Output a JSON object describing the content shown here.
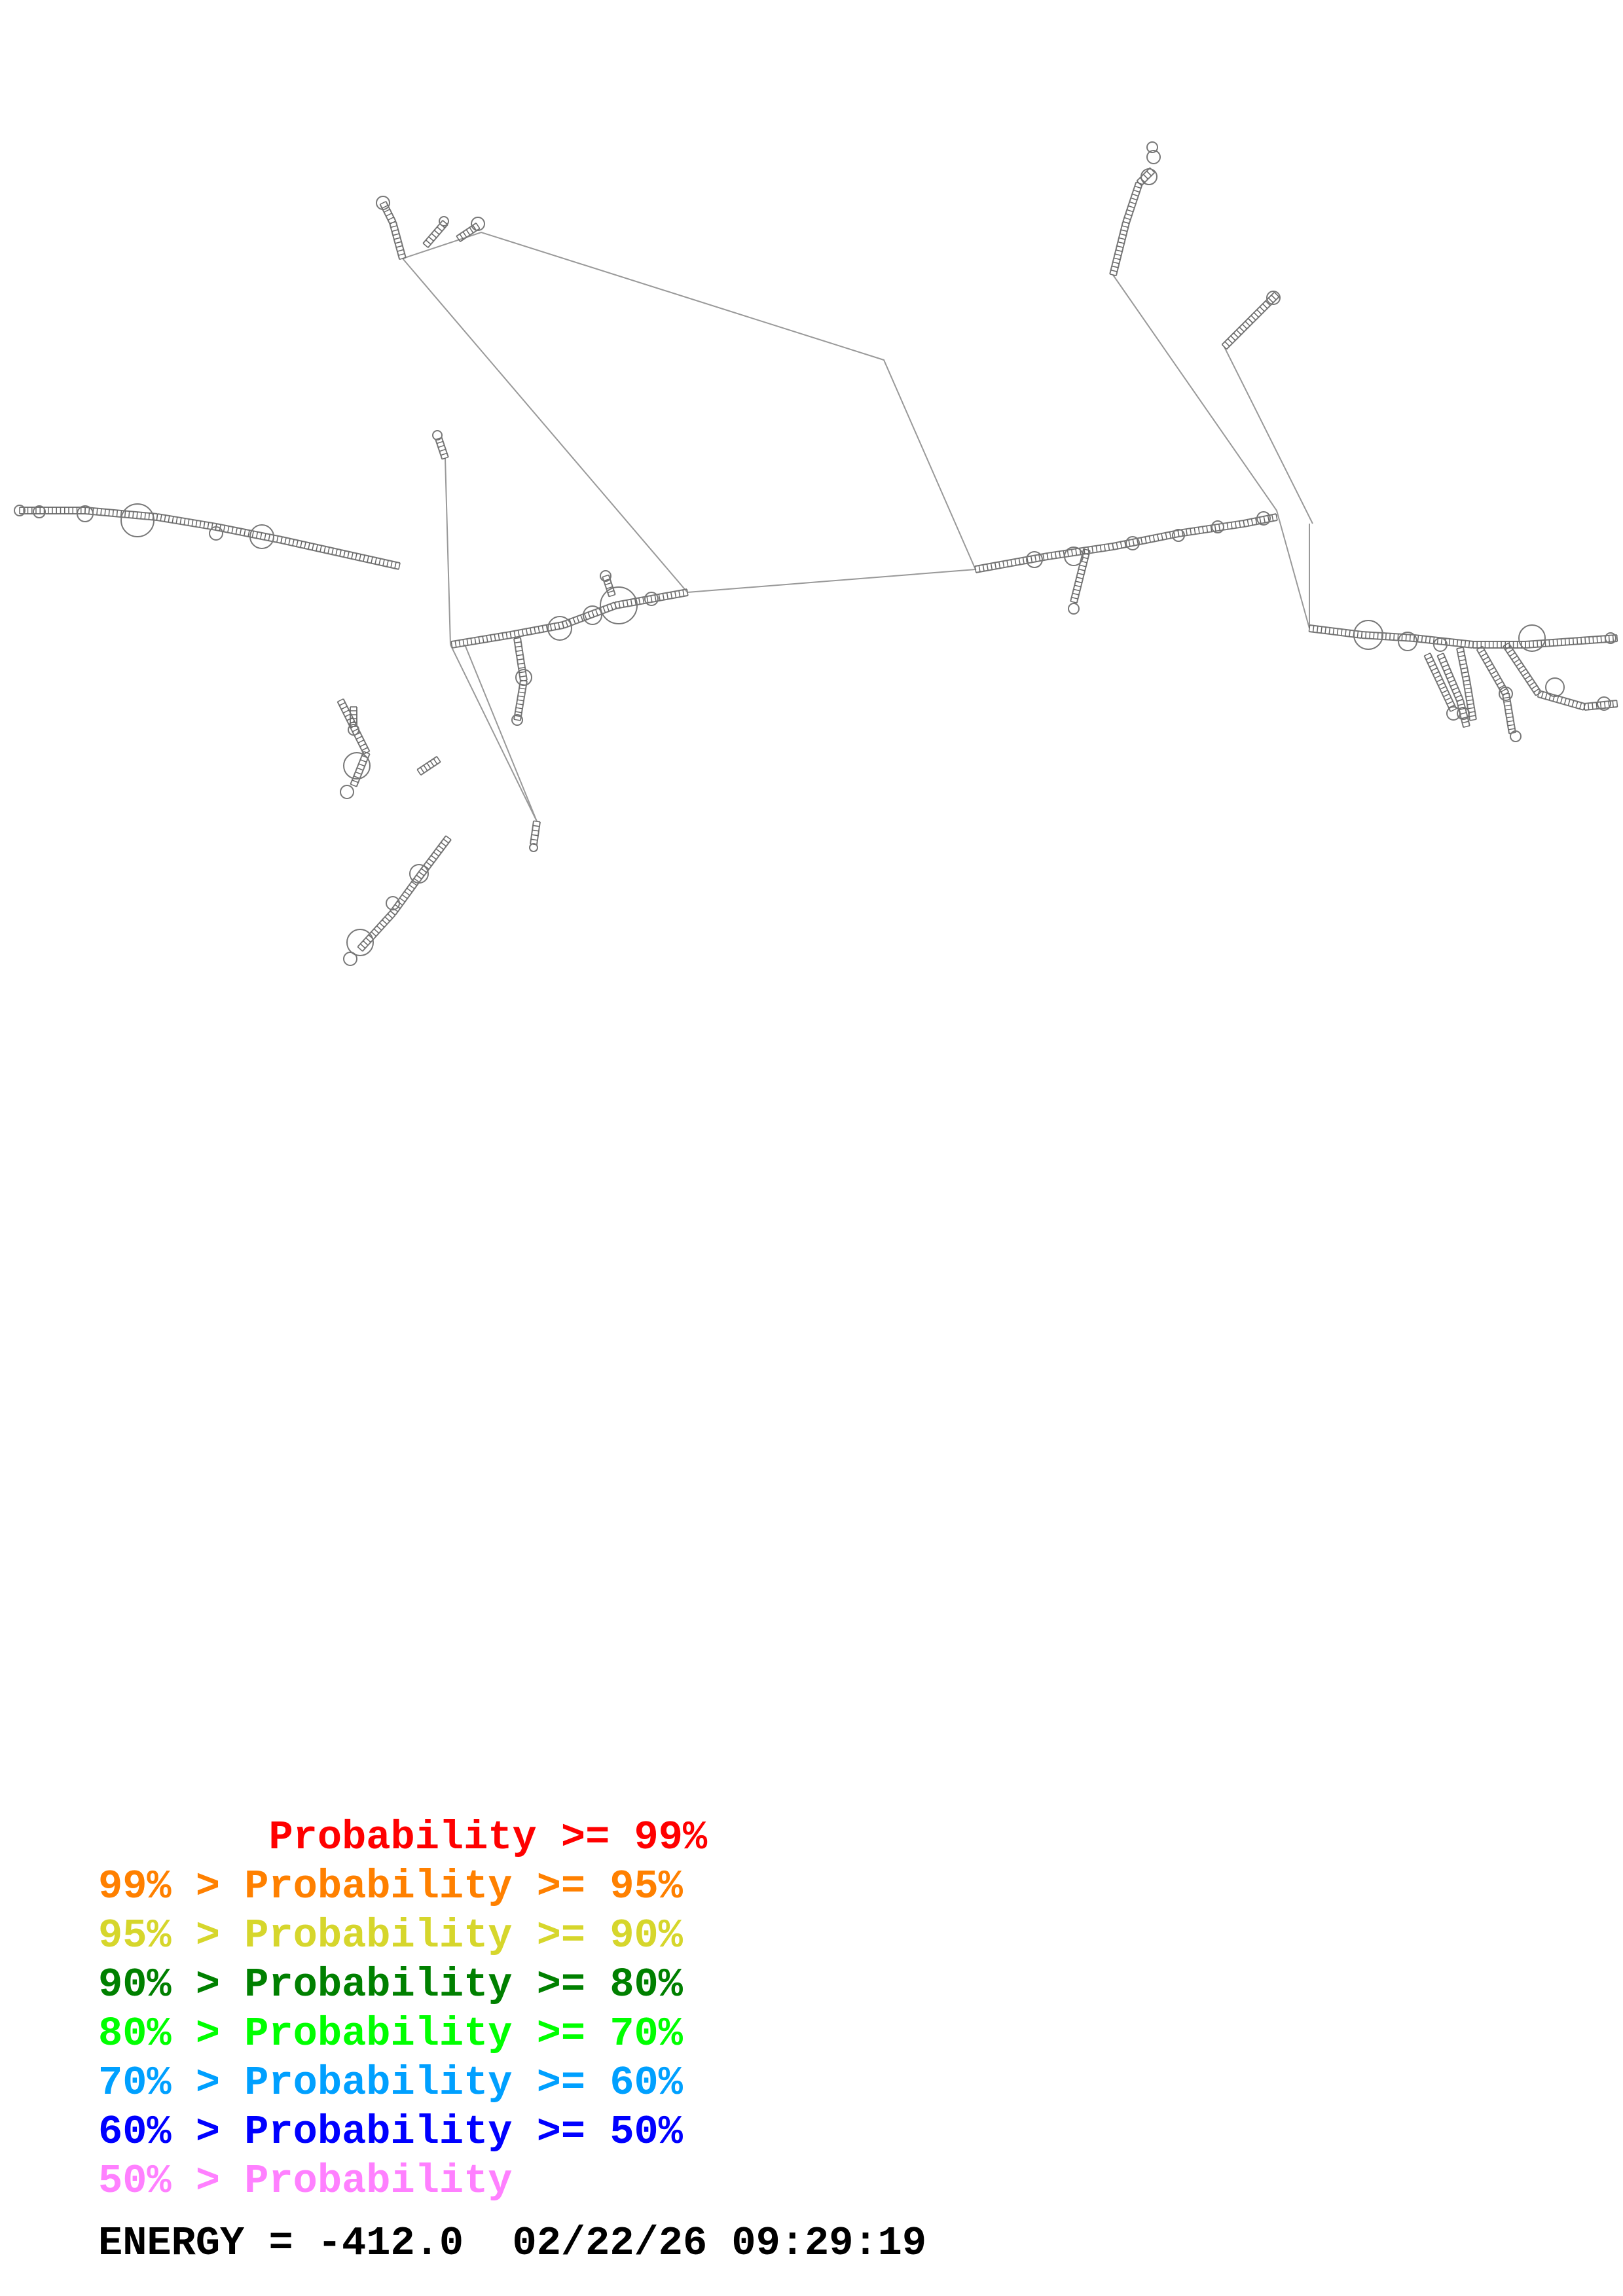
{
  "legend": [
    {
      "prefix": "       ",
      "label": "Probability >= 99%",
      "color": "#ff0000"
    },
    {
      "prefix": "99% > ",
      "label": "Probability >= 95%",
      "color": "#ff8000"
    },
    {
      "prefix": "95% > ",
      "label": "Probability >= 90%",
      "color": "#d6d62c"
    },
    {
      "prefix": "90% > ",
      "label": "Probability >= 80%",
      "color": "#008000"
    },
    {
      "prefix": "80% > ",
      "label": "Probability >= 70%",
      "color": "#00ff00"
    },
    {
      "prefix": "70% > ",
      "label": "Probability >= 60%",
      "color": "#00a0ff"
    },
    {
      "prefix": "60% > ",
      "label": "Probability >= 50%",
      "color": "#0000ff"
    },
    {
      "prefix": "50% > ",
      "label": "Probability",
      "color": "#ff80ff"
    }
  ],
  "footer": {
    "energy": "ENERGY = -412.0",
    "timestamp": "02/22/26 09:29:19"
  },
  "colors": {
    "backbone": "#888888",
    "pair": "#666666"
  }
}
